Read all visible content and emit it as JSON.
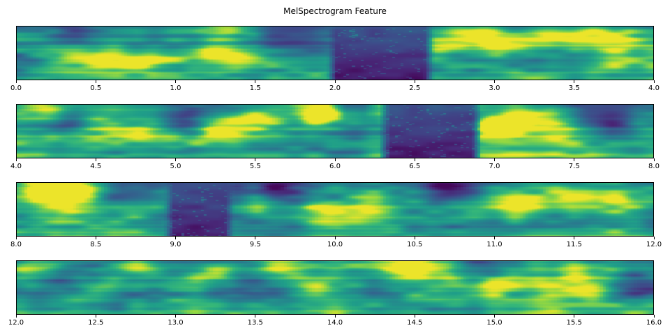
{
  "chart_data": {
    "type": "heatmap",
    "title": "MelSpectrogram Feature",
    "xlabel": "",
    "ylabel": "",
    "colormap": "viridis",
    "n_subplots": 4,
    "subplots": [
      {
        "x_range": [
          0.0,
          4.0
        ],
        "tick_labels": [
          "0.0",
          "0.5",
          "1.0",
          "1.5",
          "2.0",
          "2.5",
          "3.0",
          "3.5",
          "4.0"
        ],
        "seed": 11,
        "silence_regions": [
          [
            1.95,
            2.62
          ]
        ],
        "top_dark_regions": [
          [
            1.5,
            1.97
          ]
        ],
        "bright_blobs": [
          [
            0.3,
            0.6
          ],
          [
            0.55,
            0.55
          ],
          [
            0.8,
            0.65
          ],
          [
            1.2,
            0.5
          ],
          [
            1.4,
            0.62
          ],
          [
            1.3,
            0.12
          ],
          [
            2.67,
            0.4
          ],
          [
            2.9,
            0.18,
            0.45
          ],
          [
            3.1,
            0.45
          ],
          [
            3.35,
            0.15
          ],
          [
            3.6,
            0.15,
            0.45
          ],
          [
            3.8,
            0.18,
            0.45
          ],
          [
            3.75,
            0.6
          ]
        ],
        "dark_blobs": [
          [
            0.35,
            0.08,
            0.3
          ],
          [
            1.72,
            0.1,
            0.35
          ]
        ]
      },
      {
        "x_range": [
          4.0,
          8.0
        ],
        "tick_labels": [
          "4.0",
          "4.5",
          "5.0",
          "5.5",
          "6.0",
          "6.5",
          "7.0",
          "7.5",
          "8.0"
        ],
        "seed": 22,
        "silence_regions": [
          [
            6.28,
            6.92
          ]
        ],
        "top_dark_regions": [
          [
            5.95,
            6.3
          ],
          [
            7.5,
            7.9
          ]
        ],
        "bright_blobs": [
          [
            4.2,
            0.12,
            0.45
          ],
          [
            4.5,
            0.35
          ],
          [
            4.85,
            0.5
          ],
          [
            5.25,
            0.45
          ],
          [
            5.5,
            0.3
          ],
          [
            5.9,
            0.15,
            0.45
          ],
          [
            6.1,
            0.2
          ],
          [
            7.0,
            0.5,
            0.45
          ],
          [
            7.2,
            0.3
          ],
          [
            7.4,
            0.55
          ],
          [
            7.95,
            0.5
          ]
        ],
        "dark_blobs": [
          [
            4.3,
            0.3
          ],
          [
            5.05,
            0.3
          ],
          [
            7.6,
            0.15,
            0.4
          ],
          [
            7.75,
            0.35
          ]
        ]
      },
      {
        "x_range": [
          8.0,
          12.0
        ],
        "tick_labels": [
          "8.0",
          "8.5",
          "9.0",
          "9.5",
          "10.0",
          "10.5",
          "11.0",
          "11.5",
          "12.0"
        ],
        "seed": 33,
        "silence_regions": [
          [
            8.93,
            9.37
          ]
        ],
        "top_dark_regions": [
          [
            8.55,
            8.95
          ]
        ],
        "bright_blobs": [
          [
            8.2,
            0.12,
            0.5
          ],
          [
            8.4,
            0.2,
            0.45
          ],
          [
            8.3,
            0.52
          ],
          [
            8.7,
            0.45
          ],
          [
            9.55,
            0.35
          ],
          [
            9.9,
            0.55
          ],
          [
            10.2,
            0.4
          ],
          [
            11.15,
            0.45
          ],
          [
            11.5,
            0.3
          ],
          [
            11.8,
            0.4
          ]
        ],
        "dark_blobs": [
          [
            9.6,
            0.1
          ],
          [
            10.73,
            0.12,
            0.5
          ],
          [
            8.6,
            0.3
          ]
        ]
      },
      {
        "x_range": [
          12.0,
          16.0
        ],
        "tick_labels": [
          "12.0",
          "12.5",
          "13.0",
          "13.5",
          "14.0",
          "14.5",
          "15.0",
          "15.5",
          "16.0"
        ],
        "seed": 44,
        "silence_regions": [],
        "top_dark_regions": [],
        "bright_blobs": [
          [
            12.15,
            0.15
          ],
          [
            12.5,
            0.45
          ],
          [
            12.75,
            0.12,
            0.45
          ],
          [
            13.3,
            0.2
          ],
          [
            13.65,
            0.12,
            0.45
          ],
          [
            13.9,
            0.5
          ],
          [
            14.45,
            0.1,
            0.5
          ],
          [
            14.7,
            0.15
          ],
          [
            15.0,
            0.5
          ],
          [
            15.3,
            0.6
          ],
          [
            15.6,
            0.55
          ]
        ],
        "dark_blobs": [
          [
            13.45,
            0.35
          ],
          [
            14.85,
            0.12
          ],
          [
            15.92,
            0.45,
            0.55
          ],
          [
            12.3,
            0.3
          ]
        ]
      }
    ]
  }
}
